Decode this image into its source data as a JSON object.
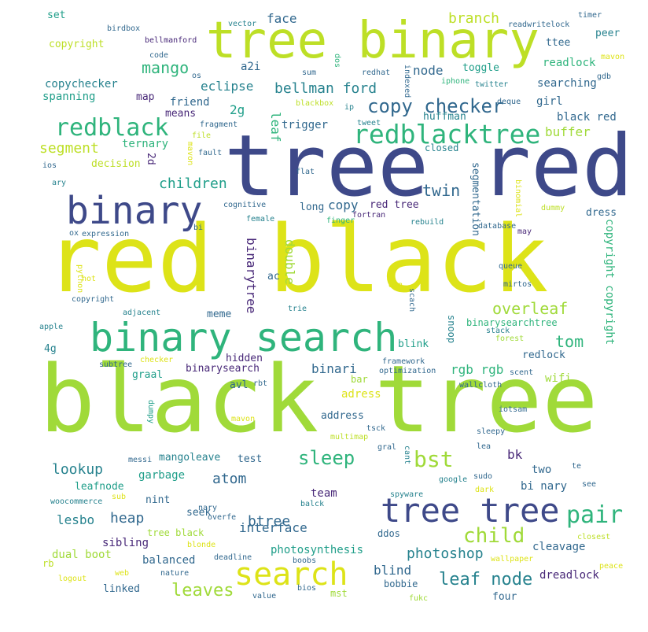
{
  "palette": {
    "lime": "#a0da39",
    "yellow": "#dde318",
    "green": "#2fb47c",
    "teal": "#1f9e89",
    "steel": "#31688e",
    "indigo": "#3e4989",
    "purple": "#482878",
    "light": "#bddf26",
    "cyan": "#26828e"
  },
  "words": [
    {
      "text": "black tree"
    },
    {
      "text": "red black"
    },
    {
      "text": "tree red"
    },
    {
      "text": "tree binary"
    },
    {
      "text": "binary search"
    },
    {
      "text": "binary"
    },
    {
      "text": "tree tree"
    },
    {
      "text": "redblacktree"
    },
    {
      "text": "redblack"
    },
    {
      "text": "search"
    },
    {
      "text": "pair"
    },
    {
      "text": "copy checker"
    },
    {
      "text": "bst"
    },
    {
      "text": "sleep"
    },
    {
      "text": "child"
    },
    {
      "text": "bellman ford"
    },
    {
      "text": "leaf node"
    },
    {
      "text": "mango"
    },
    {
      "text": "overleaf"
    },
    {
      "text": "photoshop"
    },
    {
      "text": "leaves"
    },
    {
      "text": "segment"
    },
    {
      "text": "children"
    },
    {
      "text": "tom"
    },
    {
      "text": "twin"
    },
    {
      "text": "lookup"
    },
    {
      "text": "atom"
    },
    {
      "text": "btree"
    },
    {
      "text": "heap"
    },
    {
      "text": "lesbo"
    },
    {
      "text": "interface"
    },
    {
      "text": "node"
    },
    {
      "text": "branch"
    },
    {
      "text": "eclipse"
    },
    {
      "text": "buffer"
    },
    {
      "text": "ternary"
    },
    {
      "text": "rgb rgb"
    },
    {
      "text": "binari"
    },
    {
      "text": "copychecker"
    },
    {
      "text": "spanning"
    },
    {
      "text": "black red"
    },
    {
      "text": "dreadlock"
    },
    {
      "text": "cleavage"
    },
    {
      "text": "blind"
    },
    {
      "text": "sibling"
    },
    {
      "text": "balanced"
    },
    {
      "text": "dual boot"
    },
    {
      "text": "photosynthesis"
    },
    {
      "text": "leafnode"
    },
    {
      "text": "garbage"
    },
    {
      "text": "nint"
    },
    {
      "text": "seek"
    },
    {
      "text": "team"
    },
    {
      "text": "bi nary"
    },
    {
      "text": "two"
    },
    {
      "text": "bk"
    },
    {
      "text": "girl"
    },
    {
      "text": "searching"
    },
    {
      "text": "readlock"
    },
    {
      "text": "toggle"
    },
    {
      "text": "huffman"
    },
    {
      "text": "trigger"
    },
    {
      "text": "friend"
    },
    {
      "text": "means"
    },
    {
      "text": "map"
    },
    {
      "text": "decision"
    },
    {
      "text": "face"
    },
    {
      "text": "copyright"
    },
    {
      "text": "set"
    },
    {
      "text": "a2i"
    },
    {
      "text": "2g"
    },
    {
      "text": "2d"
    },
    {
      "text": "leaf"
    },
    {
      "text": "copy"
    },
    {
      "text": "long"
    },
    {
      "text": "red tree"
    },
    {
      "text": "dress"
    },
    {
      "text": "ac"
    },
    {
      "text": "meme"
    },
    {
      "text": "hidden"
    },
    {
      "text": "graal"
    },
    {
      "text": "avl"
    },
    {
      "text": "binarysearch"
    },
    {
      "text": "blink"
    },
    {
      "text": "binarysearchtree"
    },
    {
      "text": "redlock"
    },
    {
      "text": "wifi"
    },
    {
      "text": "adress"
    },
    {
      "text": "address"
    },
    {
      "text": "bar"
    },
    {
      "text": "test"
    },
    {
      "text": "mangoleave"
    },
    {
      "text": "4g"
    },
    {
      "text": "linked"
    },
    {
      "text": "bobbie"
    },
    {
      "text": "four"
    },
    {
      "text": "closed"
    },
    {
      "text": "ttee"
    },
    {
      "text": "peer"
    },
    {
      "text": "binarytree"
    },
    {
      "text": "double"
    },
    {
      "text": "segmentation"
    },
    {
      "text": "copyright copyright"
    },
    {
      "text": "snoop"
    },
    {
      "text": "mst"
    },
    {
      "text": "ddos"
    },
    {
      "text": "tree black"
    },
    {
      "text": "rb"
    },
    {
      "text": "bellmanford"
    },
    {
      "text": "readwritelock"
    },
    {
      "text": "birdbox"
    },
    {
      "text": "vector"
    },
    {
      "text": "timer"
    },
    {
      "text": "code"
    },
    {
      "text": "os"
    },
    {
      "text": "sum"
    },
    {
      "text": "dos"
    },
    {
      "text": "redhat"
    },
    {
      "text": "indexed"
    },
    {
      "text": "iphone"
    },
    {
      "text": "twitter"
    },
    {
      "text": "gdb"
    },
    {
      "text": "mavon"
    },
    {
      "text": "blackbox"
    },
    {
      "text": "ip"
    },
    {
      "text": "deque"
    },
    {
      "text": "fragment"
    },
    {
      "text": "tweet"
    },
    {
      "text": "file"
    },
    {
      "text": "fault"
    },
    {
      "text": "flat"
    },
    {
      "text": "ios"
    },
    {
      "text": "ary"
    },
    {
      "text": "cognitive"
    },
    {
      "text": "female"
    },
    {
      "text": "fortran"
    },
    {
      "text": "finger"
    },
    {
      "text": "rebuild"
    },
    {
      "text": "database"
    },
    {
      "text": "may"
    },
    {
      "text": "binomial"
    },
    {
      "text": "dummy"
    },
    {
      "text": "bi"
    },
    {
      "text": "ox"
    },
    {
      "text": "expression"
    },
    {
      "text": "queue"
    },
    {
      "text": "python"
    },
    {
      "text": "mirtos"
    },
    {
      "text": "hot"
    },
    {
      "text": "copyright"
    },
    {
      "text": "den"
    },
    {
      "text": "scach"
    },
    {
      "text": "adjacent"
    },
    {
      "text": "trie"
    },
    {
      "text": "apple"
    },
    {
      "text": "stack"
    },
    {
      "text": "forest"
    },
    {
      "text": "subtree"
    },
    {
      "text": "checker"
    },
    {
      "text": "framework"
    },
    {
      "text": "optimization"
    },
    {
      "text": "scent"
    },
    {
      "text": "rbt"
    },
    {
      "text": "wallcloth"
    },
    {
      "text": "dumpy"
    },
    {
      "text": "iotsam"
    },
    {
      "text": "tsck"
    },
    {
      "text": "multimap"
    },
    {
      "text": "sleepy"
    },
    {
      "text": "gral"
    },
    {
      "text": "lea"
    },
    {
      "text": "cant"
    },
    {
      "text": "messi"
    },
    {
      "text": "te"
    },
    {
      "text": "google"
    },
    {
      "text": "sudo"
    },
    {
      "text": "dark"
    },
    {
      "text": "see"
    },
    {
      "text": "woocommerce"
    },
    {
      "text": "sub"
    },
    {
      "text": "balck"
    },
    {
      "text": "nary"
    },
    {
      "text": "overfe"
    },
    {
      "text": "spyware"
    },
    {
      "text": "blonde"
    },
    {
      "text": "closest"
    },
    {
      "text": "deadline"
    },
    {
      "text": "boobs"
    },
    {
      "text": "wallpaper"
    },
    {
      "text": "web"
    },
    {
      "text": "nature"
    },
    {
      "text": "logout"
    },
    {
      "text": "bios"
    },
    {
      "text": "value"
    },
    {
      "text": "fukc"
    },
    {
      "text": "peace"
    },
    {
      "text": "mavon"
    },
    {
      "text": "mavon"
    }
  ]
}
